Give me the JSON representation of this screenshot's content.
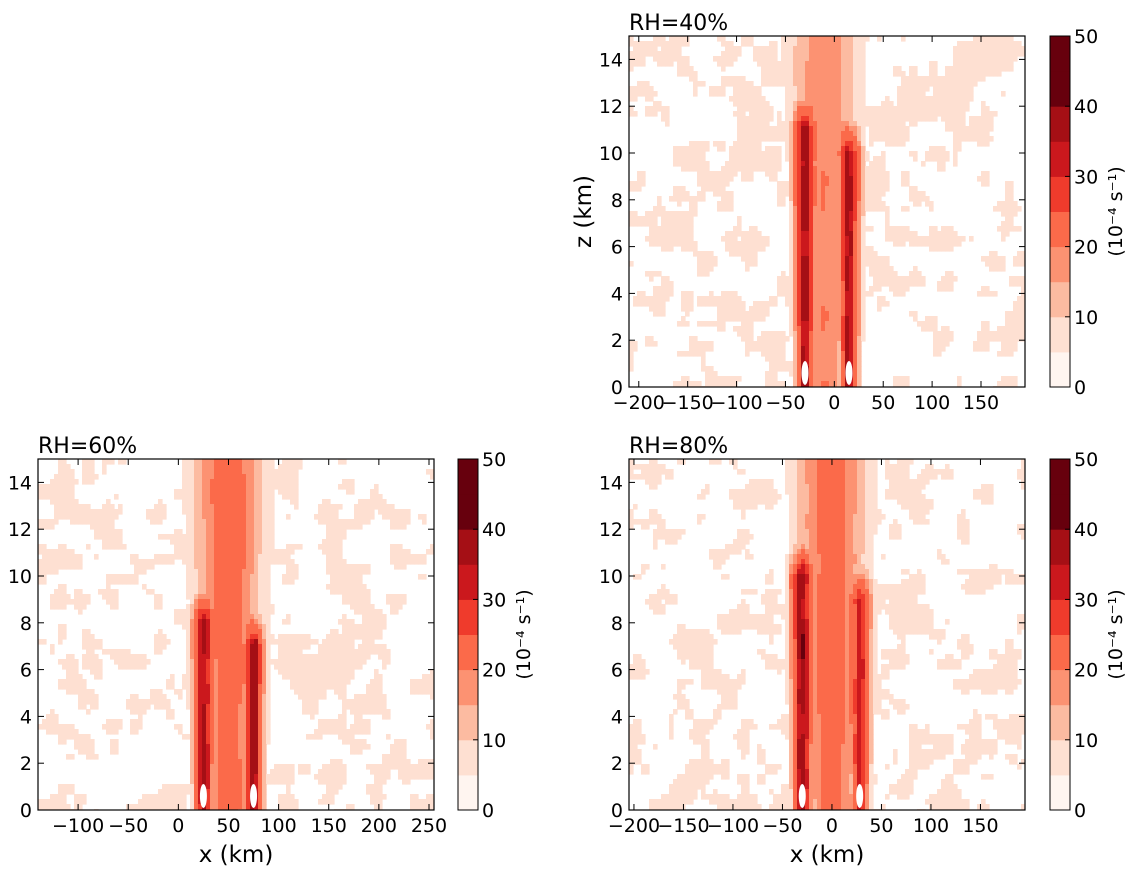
{
  "chart_data": [
    {
      "type": "heatmap",
      "subtype": "filled-contour",
      "title": "RH=40%",
      "xlabel": "",
      "ylabel": "z (km)",
      "xlim": [
        -210,
        195
      ],
      "ylim": [
        0,
        15
      ],
      "xticks": [
        -200,
        -150,
        -100,
        -50,
        0,
        50,
        100,
        150
      ],
      "yticks": [
        0,
        2,
        4,
        6,
        8,
        10,
        12,
        14
      ],
      "colorbar": {
        "label": "(10⁻⁴ s⁻¹)",
        "levels": [
          0,
          5,
          10,
          15,
          20,
          25,
          30,
          35,
          40,
          45,
          50
        ],
        "ticks": [
          0,
          10,
          20,
          30,
          40,
          50
        ]
      },
      "features": [
        {
          "x": -30,
          "z_bottom": 0,
          "z_top": 11,
          "peak": 45,
          "note": "left column"
        },
        {
          "x": 15,
          "z_bottom": 0,
          "z_top": 10,
          "peak": 45,
          "note": "right column"
        },
        {
          "x": -10,
          "z_bottom": 0,
          "z_top": 15,
          "peak": 20,
          "note": "central core"
        }
      ]
    },
    {
      "type": "heatmap",
      "subtype": "filled-contour",
      "title": "RH=60%",
      "xlabel": "x (km)",
      "ylabel": "",
      "xlim": [
        -140,
        255
      ],
      "ylim": [
        0,
        15
      ],
      "xticks": [
        -100,
        -50,
        0,
        50,
        100,
        150,
        200,
        250
      ],
      "yticks": [
        0,
        2,
        4,
        6,
        8,
        10,
        12,
        14
      ],
      "colorbar": {
        "label": "(10⁻⁴ s⁻¹)",
        "levels": [
          0,
          5,
          10,
          15,
          20,
          25,
          30,
          35,
          40,
          45,
          50
        ],
        "ticks": [
          0,
          10,
          20,
          30,
          40,
          50
        ]
      },
      "features": [
        {
          "x": 25,
          "z_bottom": 0,
          "z_top": 8,
          "peak": 45,
          "note": "left column"
        },
        {
          "x": 75,
          "z_bottom": 0,
          "z_top": 7,
          "peak": 45,
          "note": "right column"
        },
        {
          "x": 50,
          "z_bottom": 0,
          "z_top": 15,
          "peak": 25,
          "note": "central core"
        }
      ]
    },
    {
      "type": "heatmap",
      "subtype": "filled-contour",
      "title": "RH=80%",
      "xlabel": "x (km)",
      "ylabel": "",
      "xlim": [
        -205,
        195
      ],
      "ylim": [
        0,
        15
      ],
      "xticks": [
        -200,
        -150,
        -100,
        -50,
        0,
        50,
        100,
        150
      ],
      "yticks": [
        0,
        2,
        4,
        6,
        8,
        10,
        12,
        14
      ],
      "colorbar": {
        "label": "(10⁻⁴ s⁻¹)",
        "levels": [
          0,
          5,
          10,
          15,
          20,
          25,
          30,
          35,
          40,
          45,
          50
        ],
        "ticks": [
          0,
          10,
          20,
          30,
          40,
          50
        ]
      },
      "features": [
        {
          "x": -30,
          "z_bottom": 0,
          "z_top": 10,
          "peak": 45,
          "note": "left column"
        },
        {
          "x": 28,
          "z_bottom": 0,
          "z_top": 9,
          "peak": 40,
          "note": "right column"
        },
        {
          "x": 0,
          "z_bottom": 0,
          "z_top": 15,
          "peak": 25,
          "note": "central core"
        }
      ]
    }
  ],
  "palette": [
    "#fff5f0",
    "#fee0d2",
    "#fcbba1",
    "#fc9272",
    "#fb6a4a",
    "#ef3b2c",
    "#cb181d",
    "#a50f15",
    "#67000d"
  ]
}
